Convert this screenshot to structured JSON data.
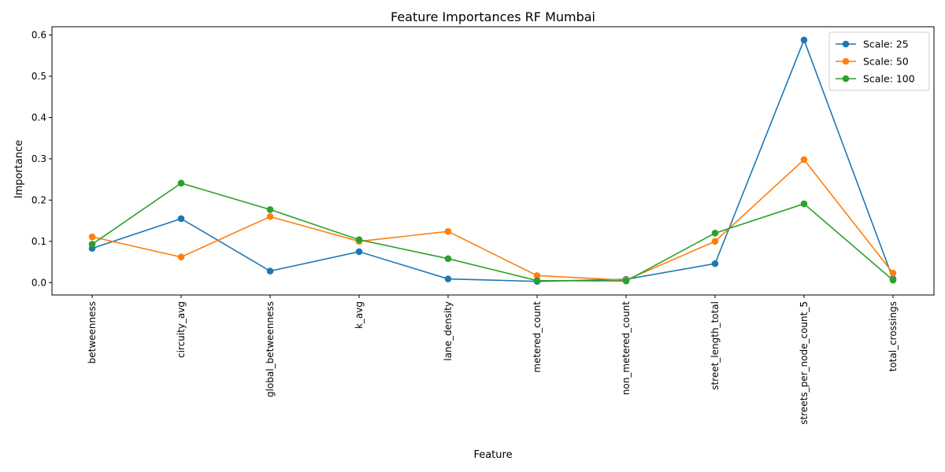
{
  "chart_data": {
    "type": "line",
    "title": "Feature Importances RF Mumbai",
    "xlabel": "Feature",
    "ylabel": "Importance",
    "categories": [
      "betweenness",
      "circuity_avg",
      "global_betweenness",
      "k_avg",
      "lane_density",
      "metered_count",
      "non_metered_count",
      "street_length_total",
      "streets_per_node_count_5",
      "total_crossings"
    ],
    "ylim": [
      -0.03,
      0.62
    ],
    "yticks": [
      0.0,
      0.1,
      0.2,
      0.3,
      0.4,
      0.5,
      0.6
    ],
    "ytick_labels": [
      "0.0",
      "0.1",
      "0.2",
      "0.3",
      "0.4",
      "0.5",
      "0.6"
    ],
    "grid": false,
    "legend_position": "top-right",
    "series": [
      {
        "name": "Scale: 25",
        "color": "#1f77b4",
        "values": [
          0.083,
          0.155,
          0.028,
          0.075,
          0.009,
          0.003,
          0.008,
          0.046,
          0.588,
          0.009
        ]
      },
      {
        "name": "Scale: 50",
        "color": "#ff7f0e",
        "values": [
          0.111,
          0.062,
          0.16,
          0.1,
          0.124,
          0.017,
          0.006,
          0.1,
          0.298,
          0.023
        ]
      },
      {
        "name": "Scale: 100",
        "color": "#2ca02c",
        "values": [
          0.093,
          0.241,
          0.177,
          0.104,
          0.058,
          0.005,
          0.004,
          0.12,
          0.191,
          0.006
        ]
      }
    ]
  }
}
